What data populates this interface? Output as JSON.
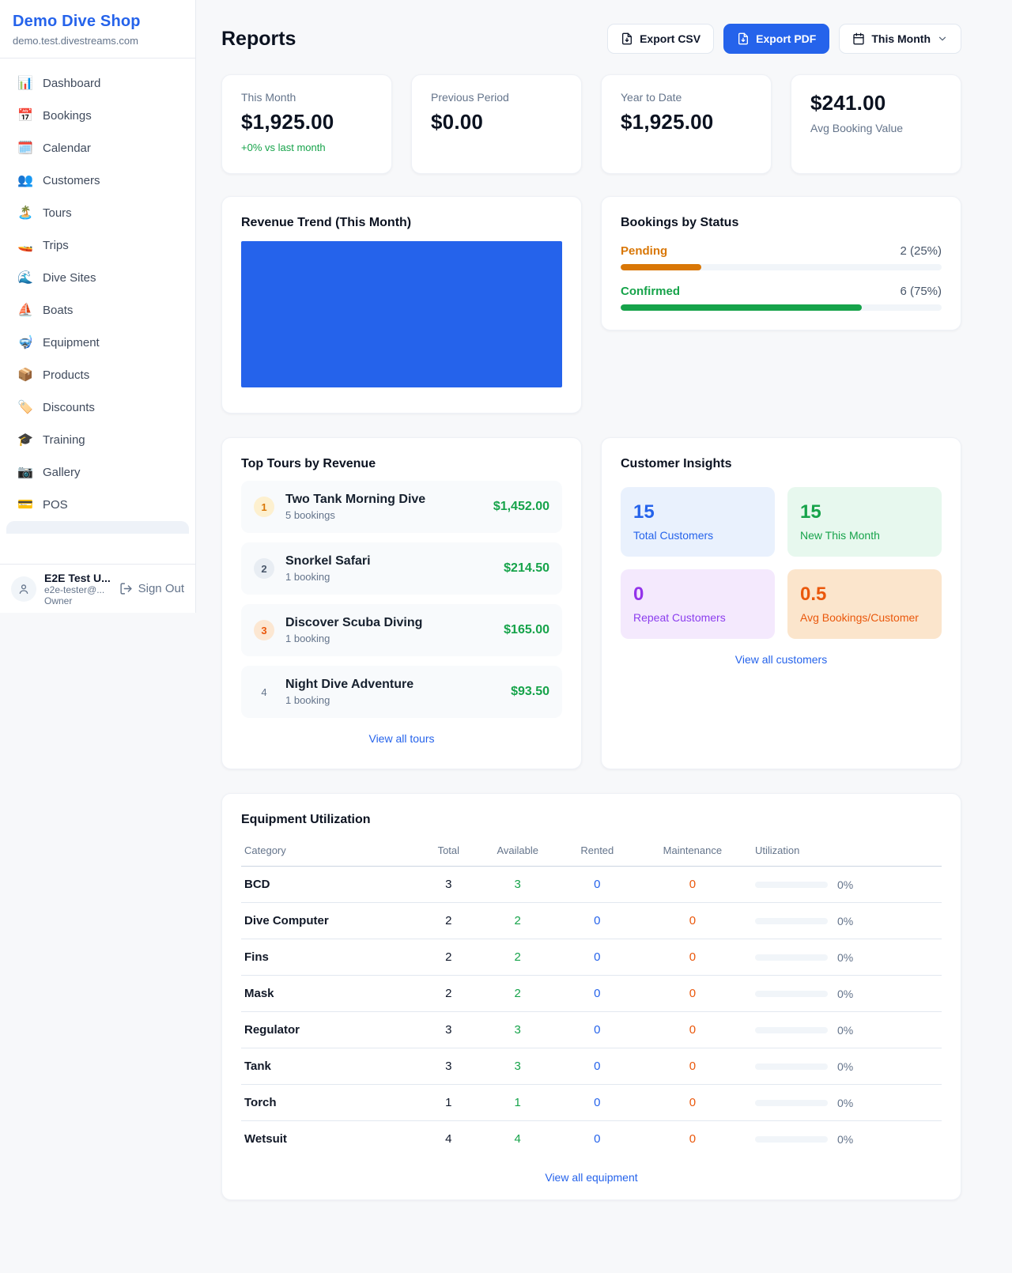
{
  "sidebar": {
    "title": "Demo Dive Shop",
    "domain": "demo.test.divestreams.com",
    "items": [
      {
        "icon": "📊",
        "label": "Dashboard"
      },
      {
        "icon": "📅",
        "label": "Bookings"
      },
      {
        "icon": "🗓️",
        "label": "Calendar"
      },
      {
        "icon": "👥",
        "label": "Customers"
      },
      {
        "icon": "🏝️",
        "label": "Tours"
      },
      {
        "icon": "🚤",
        "label": "Trips"
      },
      {
        "icon": "🌊",
        "label": "Dive Sites"
      },
      {
        "icon": "⛵",
        "label": "Boats"
      },
      {
        "icon": "🤿",
        "label": "Equipment"
      },
      {
        "icon": "📦",
        "label": "Products"
      },
      {
        "icon": "🏷️",
        "label": "Discounts"
      },
      {
        "icon": "🎓",
        "label": "Training"
      },
      {
        "icon": "📷",
        "label": "Gallery"
      },
      {
        "icon": "💳",
        "label": "POS"
      }
    ],
    "user": {
      "name": "E2E Test U...",
      "email": "e2e-tester@...",
      "role": "Owner",
      "sign_out": "Sign Out"
    }
  },
  "header": {
    "title": "Reports",
    "export_csv": "Export CSV",
    "export_pdf": "Export PDF",
    "period": "This Month"
  },
  "stats": [
    {
      "label": "This Month",
      "value": "$1,925.00",
      "delta": "+0% vs last month"
    },
    {
      "label": "Previous Period",
      "value": "$0.00"
    },
    {
      "label": "Year to Date",
      "value": "$1,925.00"
    },
    {
      "label": "Avg Booking Value",
      "value": "$241.00"
    }
  ],
  "revenue_trend": {
    "title": "Revenue Trend (This Month)",
    "bar_color": "#2563eb"
  },
  "bookings_by_status": {
    "title": "Bookings by Status",
    "rows": [
      {
        "label": "Pending",
        "count": "2 (25%)",
        "pct": 25,
        "color": "#d97706"
      },
      {
        "label": "Confirmed",
        "count": "6 (75%)",
        "pct": 75,
        "color": "#16a34a"
      }
    ]
  },
  "top_tours": {
    "title": "Top Tours by Revenue",
    "rows": [
      {
        "rank": "1",
        "name": "Two Tank Morning Dive",
        "bookings": "5 bookings",
        "revenue": "$1,452.00"
      },
      {
        "rank": "2",
        "name": "Snorkel Safari",
        "bookings": "1 booking",
        "revenue": "$214.50"
      },
      {
        "rank": "3",
        "name": "Discover Scuba Diving",
        "bookings": "1 booking",
        "revenue": "$165.00"
      },
      {
        "rank": "4",
        "name": "Night Dive Adventure",
        "bookings": "1 booking",
        "revenue": "$93.50"
      }
    ],
    "view_all": "View all tours"
  },
  "customer_insights": {
    "title": "Customer Insights",
    "tiles": [
      {
        "value": "15",
        "label": "Total Customers"
      },
      {
        "value": "15",
        "label": "New This Month"
      },
      {
        "value": "0",
        "label": "Repeat Customers"
      },
      {
        "value": "0.5",
        "label": "Avg Bookings/Customer"
      }
    ],
    "view_all": "View all customers"
  },
  "equipment": {
    "title": "Equipment Utilization",
    "columns": [
      "Category",
      "Total",
      "Available",
      "Rented",
      "Maintenance",
      "Utilization"
    ],
    "rows": [
      {
        "category": "BCD",
        "total": "3",
        "available": "3",
        "rented": "0",
        "maintenance": "0",
        "utilization": "0%",
        "pct": 0
      },
      {
        "category": "Dive Computer",
        "total": "2",
        "available": "2",
        "rented": "0",
        "maintenance": "0",
        "utilization": "0%",
        "pct": 0
      },
      {
        "category": "Fins",
        "total": "2",
        "available": "2",
        "rented": "0",
        "maintenance": "0",
        "utilization": "0%",
        "pct": 0
      },
      {
        "category": "Mask",
        "total": "2",
        "available": "2",
        "rented": "0",
        "maintenance": "0",
        "utilization": "0%",
        "pct": 0
      },
      {
        "category": "Regulator",
        "total": "3",
        "available": "3",
        "rented": "0",
        "maintenance": "0",
        "utilization": "0%",
        "pct": 0
      },
      {
        "category": "Tank",
        "total": "3",
        "available": "3",
        "rented": "0",
        "maintenance": "0",
        "utilization": "0%",
        "pct": 0
      },
      {
        "category": "Torch",
        "total": "1",
        "available": "1",
        "rented": "0",
        "maintenance": "0",
        "utilization": "0%",
        "pct": 0
      },
      {
        "category": "Wetsuit",
        "total": "4",
        "available": "4",
        "rented": "0",
        "maintenance": "0",
        "utilization": "0%",
        "pct": 0
      }
    ],
    "view_all": "View all equipment"
  },
  "colors": {
    "accent": "#2563eb",
    "positive": "#16a34a",
    "pending": "#d97706",
    "warning": "#ea580c"
  }
}
